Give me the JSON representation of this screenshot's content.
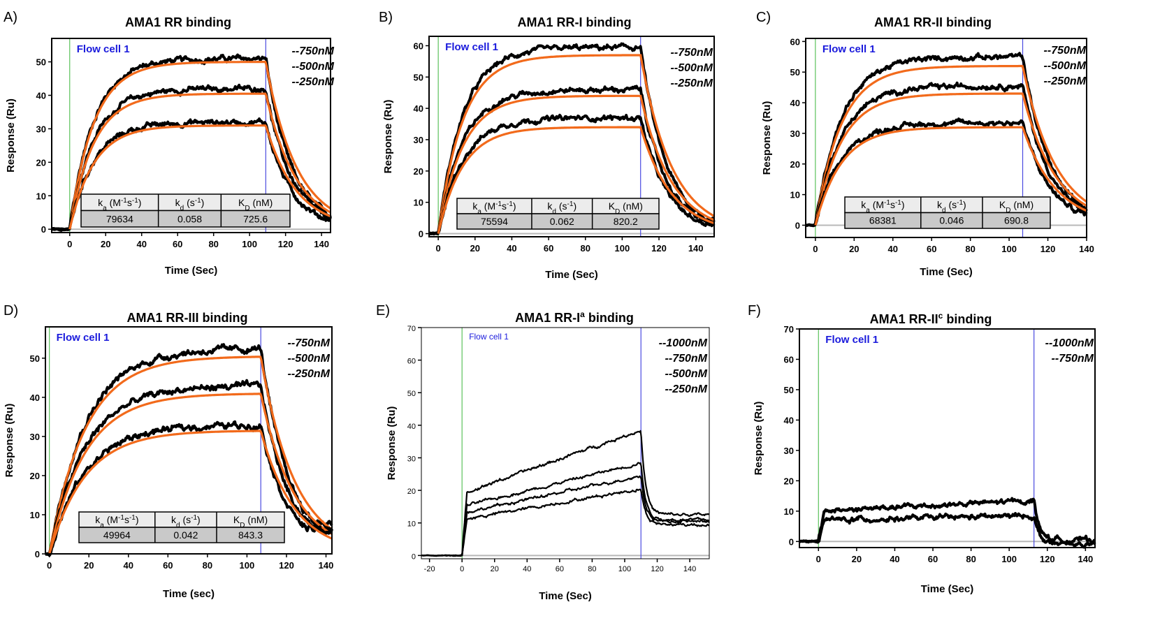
{
  "chart_data": [
    {
      "type": "line",
      "panel": "A)",
      "title": "AMA1 RR binding",
      "title_base": "AMA1 RR",
      "title_sup": "",
      "title_rest": " binding",
      "xlabel": "Time (Sec)",
      "ylabel": "Response (Ru)",
      "xlim": [
        -10,
        145
      ],
      "ylim": [
        -1,
        57
      ],
      "xticks": [
        0,
        20,
        40,
        60,
        80,
        100,
        120,
        140
      ],
      "yticks": [
        0,
        10,
        20,
        30,
        40,
        50
      ],
      "flow_cell_label": "Flow cell 1",
      "injection_start": 0,
      "injection_end": 109,
      "legend": [
        "--750nM",
        "--500nM",
        "--250nM"
      ],
      "series": [
        {
          "name": "750nM",
          "plateau": 51,
          "fit_plateau": 50,
          "end_value": 6.5
        },
        {
          "name": "500nM",
          "plateau": 42,
          "fit_plateau": 40.5,
          "end_value": 5.5
        },
        {
          "name": "250nM",
          "plateau": 32,
          "fit_plateau": 31,
          "end_value": 4.5
        }
      ],
      "kinetics": {
        "headers": [
          [
            "k",
            "a",
            " (M",
            "-1",
            "s",
            "-1",
            ")"
          ],
          [
            "k",
            "d",
            " (s",
            "-1",
            ")"
          ],
          [
            "K",
            "D",
            " (nM)"
          ]
        ],
        "values": [
          "79634",
          "0.058",
          "725.6"
        ]
      }
    },
    {
      "type": "line",
      "panel": "B)",
      "title": "AMA1 RR-I binding",
      "title_base": "AMA1 RR-I",
      "title_sup": "",
      "title_rest": " binding",
      "xlabel": "Time (Sec)",
      "ylabel": "Response (Ru)",
      "xlim": [
        -5,
        150
      ],
      "ylim": [
        -1,
        63
      ],
      "xticks": [
        0,
        20,
        40,
        60,
        80,
        100,
        120,
        140
      ],
      "yticks": [
        0,
        10,
        20,
        30,
        40,
        50,
        60
      ],
      "flow_cell_label": "Flow cell 1",
      "injection_start": 0,
      "injection_end": 110,
      "legend": [
        "--750nM",
        "--500nM",
        "--250nM"
      ],
      "series": [
        {
          "name": "750nM",
          "plateau": 59.5,
          "fit_plateau": 57,
          "end_value": 6.5
        },
        {
          "name": "500nM",
          "plateau": 46,
          "fit_plateau": 44,
          "end_value": 6
        },
        {
          "name": "250nM",
          "plateau": 37,
          "fit_plateau": 34,
          "end_value": 5
        }
      ],
      "kinetics": {
        "headers": [
          [
            "k",
            "a",
            " (M",
            "-1",
            "s",
            "-1",
            ")"
          ],
          [
            "k",
            "d",
            " (s",
            "-1",
            ")"
          ],
          [
            "K",
            "D",
            " (nM)"
          ]
        ],
        "values": [
          "75594",
          "0.062",
          "820.2"
        ]
      }
    },
    {
      "type": "line",
      "panel": "C)",
      "title": "AMA1 RR-II binding",
      "title_base": "AMA1 RR-II",
      "title_sup": "",
      "title_rest": " binding",
      "xlabel": "Time (Sec)",
      "ylabel": "Response (Ru)",
      "xlim": [
        -5,
        140
      ],
      "ylim": [
        -4,
        61
      ],
      "xticks": [
        0,
        20,
        40,
        60,
        80,
        100,
        120,
        140
      ],
      "yticks": [
        0,
        10,
        20,
        30,
        40,
        50,
        60
      ],
      "flow_cell_label": "Flow cell 1",
      "injection_start": 0,
      "injection_end": 107,
      "legend": [
        "--750nM",
        "--500nM",
        "--250nM"
      ],
      "series": [
        {
          "name": "750nM",
          "plateau": 55,
          "fit_plateau": 52,
          "end_value": 8
        },
        {
          "name": "500nM",
          "plateau": 45.5,
          "fit_plateau": 43,
          "end_value": 6.5
        },
        {
          "name": "250nM",
          "plateau": 33.5,
          "fit_plateau": 32,
          "end_value": 5.5
        }
      ],
      "kinetics": {
        "headers": [
          [
            "k",
            "a",
            " (M",
            "-1",
            "s",
            "-1",
            ")"
          ],
          [
            "k",
            "d",
            " (s",
            "-1",
            ")"
          ],
          [
            "K",
            "D",
            " (nM)"
          ]
        ],
        "values": [
          "68381",
          "0.046",
          "690.8"
        ]
      }
    },
    {
      "type": "line",
      "panel": "D)",
      "title": "AMA1 RR-III binding",
      "title_base": "AMA1 RR-III",
      "title_sup": "",
      "title_rest": " binding",
      "xlabel": "Time (sec)",
      "ylabel": "Response (Ru)",
      "xlim": [
        -2,
        143
      ],
      "ylim": [
        0,
        58
      ],
      "xticks": [
        0,
        20,
        40,
        60,
        80,
        100,
        120,
        140
      ],
      "yticks": [
        0,
        10,
        20,
        30,
        40,
        50
      ],
      "flow_cell_label": "Flow cell 1",
      "injection_start": 0,
      "injection_end": 107,
      "legend": [
        "--750nM",
        "--500nM",
        "--250nM"
      ],
      "series": [
        {
          "name": "750nM",
          "plateau": 52.5,
          "fit_plateau": 50.5,
          "end_value": 11
        },
        {
          "name": "500nM",
          "plateau": 43,
          "fit_plateau": 41,
          "end_value": 9
        },
        {
          "name": "250nM",
          "plateau": 33,
          "fit_plateau": 31.5,
          "end_value": 8
        }
      ],
      "kinetics": {
        "headers": [
          [
            "k",
            "a",
            " (M",
            "-1",
            "s",
            "-1",
            ")"
          ],
          [
            "k",
            "d",
            " (s",
            "-1",
            ")"
          ],
          [
            "K",
            "D",
            " (nM)"
          ]
        ],
        "values": [
          "49964",
          "0.042",
          "843.3"
        ]
      }
    },
    {
      "type": "line",
      "panel": "E)",
      "title": "AMA1 RR-Ia binding",
      "title_base": "AMA1 RR-I",
      "title_sup": "a",
      "title_rest": " binding",
      "xlabel": "Time (Sec)",
      "ylabel": "Response (Ru)",
      "xlim": [
        -25,
        152
      ],
      "ylim": [
        -1,
        70
      ],
      "xticks": [
        -20,
        0,
        20,
        40,
        60,
        80,
        100,
        120,
        140
      ],
      "yticks": [
        0,
        10,
        20,
        30,
        40,
        50,
        60,
        70
      ],
      "flow_cell_label": "Flow cell 1",
      "injection_start": 0,
      "injection_end": 110,
      "legend": [
        "--1000nM",
        "--750nM",
        "--500nM",
        "--250nM"
      ],
      "series": [
        {
          "name": "1000nM",
          "start": 19,
          "plateau": 38.5,
          "end_value": 12.5
        },
        {
          "name": "750nM",
          "start": 15,
          "plateau": 28.5,
          "end_value": 11
        },
        {
          "name": "500nM",
          "start": 13,
          "plateau": 24.5,
          "end_value": 10.5
        },
        {
          "name": "250nM",
          "start": 11,
          "plateau": 20.5,
          "end_value": 9.5
        }
      ]
    },
    {
      "type": "line",
      "panel": "F)",
      "title": "AMA1 RR-IIc binding",
      "title_base": "AMA1 RR-II",
      "title_sup": "c",
      "title_rest": " binding",
      "xlabel": "Time (Sec)",
      "ylabel": "Response (Ru)",
      "xlim": [
        -10,
        145
      ],
      "ylim": [
        -2,
        70
      ],
      "xticks": [
        0,
        20,
        40,
        60,
        80,
        100,
        120,
        140
      ],
      "yticks": [
        0,
        10,
        20,
        30,
        40,
        50,
        60,
        70
      ],
      "flow_cell_label": "Flow cell 1",
      "injection_start": 0,
      "injection_end": 113,
      "legend": [
        "--1000nM",
        "--750nM"
      ],
      "series": [
        {
          "name": "1000nM",
          "start": 10,
          "plateau": 13.5,
          "end_value": 0.5
        },
        {
          "name": "750nM",
          "start": 7,
          "plateau": 8.5,
          "end_value": -1
        }
      ]
    }
  ]
}
